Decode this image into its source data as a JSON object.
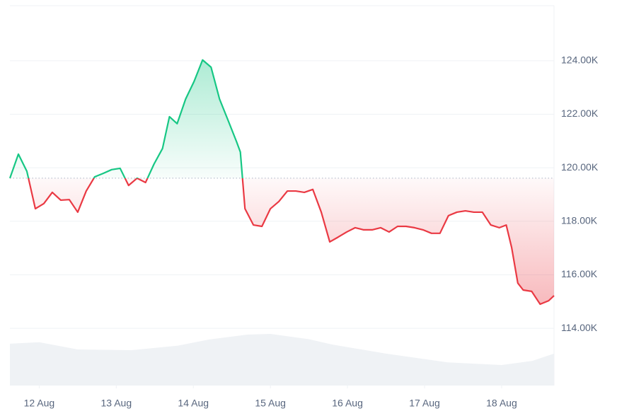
{
  "chart_data": {
    "type": "line",
    "baseline": 119610,
    "grid": true,
    "xlim": [
      11.62,
      18.68
    ],
    "xticks": [
      {
        "value": 12,
        "label": "12 Aug"
      },
      {
        "value": 13,
        "label": "13 Aug"
      },
      {
        "value": 14,
        "label": "14 Aug"
      },
      {
        "value": 15,
        "label": "15 Aug"
      },
      {
        "value": 16,
        "label": "16 Aug"
      },
      {
        "value": 17,
        "label": "17 Aug"
      },
      {
        "value": 18,
        "label": "18 Aug"
      }
    ],
    "ylim": [
      111860,
      126060
    ],
    "yticks": [
      {
        "value": 114000,
        "label": "114.00K"
      },
      {
        "value": 116000,
        "label": "116.00K"
      },
      {
        "value": 118000,
        "label": "118.00K"
      },
      {
        "value": 120000,
        "label": "120.00K"
      },
      {
        "value": 122000,
        "label": "122.00K"
      },
      {
        "value": 124000,
        "label": "124.00K"
      }
    ],
    "y2lim": [
      0,
      100
    ],
    "series": [
      {
        "type": "line",
        "up_color": "#16c784",
        "down_color": "#ea3943",
        "x": [
          11.62,
          11.73,
          11.84,
          11.95,
          12.06,
          12.17,
          12.28,
          12.39,
          12.5,
          12.61,
          12.72,
          12.83,
          12.94,
          13.05,
          13.16,
          13.27,
          13.38,
          13.49,
          13.6,
          13.69,
          13.79,
          13.9,
          14.01,
          14.12,
          14.23,
          14.34,
          14.45,
          14.56,
          14.61,
          14.67,
          14.78,
          14.89,
          15.0,
          15.11,
          15.22,
          15.33,
          15.44,
          15.55,
          15.66,
          15.77,
          15.88,
          15.99,
          16.1,
          16.21,
          16.32,
          16.43,
          16.54,
          16.65,
          16.76,
          16.87,
          16.98,
          17.09,
          17.2,
          17.31,
          17.42,
          17.53,
          17.64,
          17.75,
          17.86,
          17.97,
          18.06,
          18.13,
          18.21,
          18.28,
          18.39,
          18.5,
          18.61,
          18.68
        ],
        "values": [
          119610,
          120510,
          119870,
          118470,
          118660,
          119080,
          118790,
          118810,
          118340,
          119130,
          119660,
          119790,
          119930,
          119980,
          119340,
          119610,
          119450,
          120140,
          120720,
          121910,
          121650,
          122570,
          123230,
          124030,
          123760,
          122570,
          121780,
          120980,
          120590,
          118470,
          117860,
          117810,
          118470,
          118740,
          119130,
          119130,
          119080,
          119190,
          118340,
          117230,
          117410,
          117600,
          117760,
          117680,
          117680,
          117760,
          117600,
          117810,
          117810,
          117760,
          117680,
          117550,
          117550,
          118210,
          118340,
          118390,
          118340,
          118340,
          117860,
          117760,
          117860,
          117020,
          115690,
          115430,
          115380,
          114900,
          115030,
          115220
        ]
      },
      {
        "type": "area",
        "axis": "y2",
        "color": "#eff2f5",
        "x": [
          11.62,
          12.0,
          12.5,
          13.2,
          13.8,
          14.2,
          14.7,
          15.0,
          15.5,
          15.8,
          16.5,
          17.3,
          18.0,
          18.4,
          18.68
        ],
        "values": [
          11,
          11.4,
          9.5,
          9.3,
          10.5,
          12.1,
          13.4,
          13.6,
          12.2,
          10.8,
          8.4,
          6.1,
          5.4,
          6.5,
          8.4
        ]
      }
    ]
  }
}
